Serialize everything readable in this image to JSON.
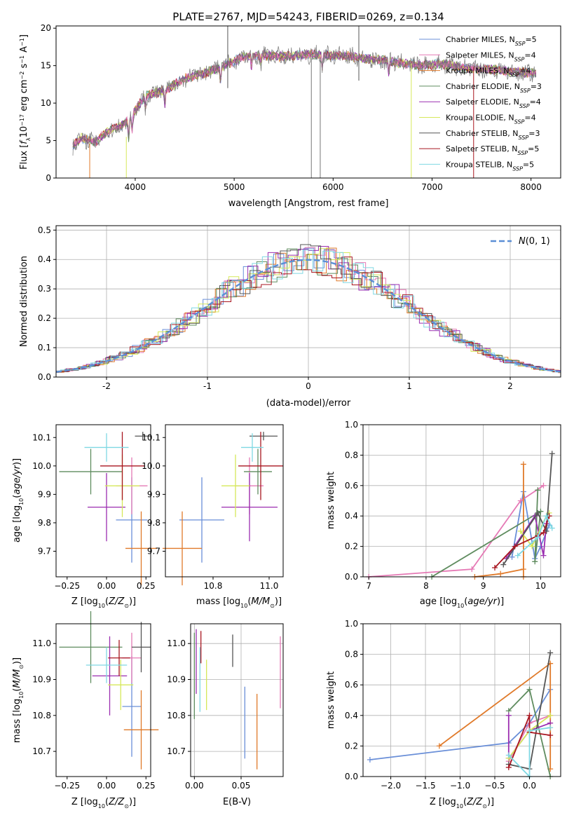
{
  "title": "PLATE=2767, MJD=54243, FIBERID=0269, z=0.134",
  "legend": [
    {
      "name": "Chabrier MILES, N_SSP=5",
      "base": "Chabrier MILES, N",
      "sub": "SSP",
      "tail": "=5",
      "color": "#6a8fd8"
    },
    {
      "name": "Salpeter MILES, N_SSP=4",
      "base": "Salpeter MILES, N",
      "sub": "SSP",
      "tail": "=4",
      "color": "#e579b5"
    },
    {
      "name": "Kroupa MILES, N_SSP=4",
      "base": "Kroupa MILES, N",
      "sub": "SSP",
      "tail": "=4",
      "color": "#e07a2a"
    },
    {
      "name": "Chabrier ELODIE, N_SSP=3",
      "base": "Chabrier ELODIE, N",
      "sub": "SSP",
      "tail": "=3",
      "color": "#5f8c5f"
    },
    {
      "name": "Salpeter ELODIE, N_SSP=4",
      "base": "Salpeter ELODIE, N",
      "sub": "SSP",
      "tail": "=4",
      "color": "#9b2eb0"
    },
    {
      "name": "Kroupa ELODIE, N_SSP=4",
      "base": "Kroupa ELODIE, N",
      "sub": "SSP",
      "tail": "=4",
      "color": "#d6e85a"
    },
    {
      "name": "Chabrier STELIB, N_SSP=3",
      "base": "Chabrier STELIB, N",
      "sub": "SSP",
      "tail": "=3",
      "color": "#555555"
    },
    {
      "name": "Salpeter STELIB, N_SSP=5",
      "base": "Salpeter STELIB, N",
      "sub": "SSP",
      "tail": "=5",
      "color": "#a81620"
    },
    {
      "name": "Kroupa STELIB, N_SSP=5",
      "base": "Kroupa STELIB, N",
      "sub": "SSP",
      "tail": "=5",
      "color": "#7fd8e3"
    }
  ],
  "chart_data": [
    {
      "id": "spectrum",
      "type": "line",
      "xlabel": "wavelength [Angstrom, rest frame]",
      "ylabel": "Flux [f_λ 10^-17 erg cm^-2 s^-1 A^-1]",
      "xlim": [
        3200,
        8300
      ],
      "ylim": [
        0,
        20.3
      ],
      "xticks": [
        4000,
        5000,
        6000,
        7000,
        8000
      ],
      "yticks": [
        0,
        5,
        10,
        15,
        20
      ],
      "grid": false,
      "legend_position": "right",
      "continuum": [
        [
          3370,
          4.3
        ],
        [
          3450,
          5.3
        ],
        [
          3600,
          4.8
        ],
        [
          3700,
          6.0
        ],
        [
          3800,
          6.7
        ],
        [
          3900,
          7.3
        ],
        [
          4000,
          9.0
        ],
        [
          4100,
          11.0
        ],
        [
          4300,
          11.7
        ],
        [
          4500,
          13.3
        ],
        [
          4700,
          14.0
        ],
        [
          4900,
          15.0
        ],
        [
          5100,
          16.2
        ],
        [
          5300,
          16.4
        ],
        [
          5500,
          16.2
        ],
        [
          5800,
          16.5
        ],
        [
          6100,
          16.3
        ],
        [
          6300,
          16.0
        ],
        [
          6500,
          15.7
        ],
        [
          6700,
          15.3
        ],
        [
          6900,
          15.0
        ],
        [
          7100,
          15.3
        ],
        [
          7300,
          14.7
        ],
        [
          7600,
          14.5
        ],
        [
          7800,
          14.2
        ],
        [
          8050,
          14.0
        ]
      ]
    },
    {
      "id": "residuals",
      "type": "histogram",
      "xlabel": "(data-model)/error",
      "ylabel": "Normed distribution",
      "xlim": [
        -2.5,
        2.5
      ],
      "ylim": [
        0,
        0.515
      ],
      "xticks": [
        -2,
        -1,
        0,
        1,
        2
      ],
      "yticks": [
        0.0,
        0.1,
        0.2,
        0.3,
        0.4,
        0.5
      ],
      "grid": true,
      "legend_position": "top-right",
      "reference_curve": {
        "name": "N(0,1)",
        "mean": 0,
        "sigma": 1,
        "color": "#5b8fd6"
      }
    },
    {
      "id": "age_vs_Z",
      "type": "errorbar",
      "xlabel": "Z [log10(Z/Z⊙)]",
      "ylabel": "age [log10(age/yr)]",
      "xlim": [
        -0.32,
        0.28
      ],
      "ylim": [
        9.61,
        10.145
      ],
      "xticks": [
        -0.25,
        0.0,
        0.25
      ],
      "xticklabels": [
        "−0.25",
        "0.00",
        "0.25"
      ],
      "yticks": [
        9.7,
        9.8,
        9.9,
        10.0,
        10.1
      ],
      "points": [
        {
          "series": 0,
          "x": 0.16,
          "xerr": 0.1,
          "y": 9.81,
          "yerr": 0.15
        },
        {
          "series": 1,
          "x": 0.16,
          "xerr": 0.1,
          "y": 9.93,
          "yerr": 0.1
        },
        {
          "series": 2,
          "x": 0.22,
          "xerr": 0.1,
          "y": 9.71,
          "yerr": 0.13
        },
        {
          "series": 3,
          "x": -0.1,
          "xerr": 0.2,
          "y": 9.98,
          "yerr": 0.08
        },
        {
          "series": 4,
          "x": 0.0,
          "xerr": 0.12,
          "y": 9.855,
          "yerr": 0.12
        },
        {
          "series": 5,
          "x": 0.1,
          "xerr": 0.11,
          "y": 9.93,
          "yerr": 0.11
        },
        {
          "series": 6,
          "x": 0.23,
          "xerr": 0.05,
          "y": 10.105,
          "yerr": 0.015
        },
        {
          "series": 7,
          "x": 0.1,
          "xerr": 0.14,
          "y": 10.0,
          "yerr": 0.12
        },
        {
          "series": 8,
          "x": 0.0,
          "xerr": 0.14,
          "y": 10.065,
          "yerr": 0.05
        }
      ]
    },
    {
      "id": "age_vs_mass",
      "type": "errorbar",
      "xlabel": "mass [log10(M/M⊙)]",
      "xlim": [
        10.63,
        11.05
      ],
      "ylim": [
        9.61,
        10.145
      ],
      "xticks": [
        10.8,
        11.0
      ],
      "xticklabels": [
        "10.8",
        "11.0"
      ],
      "yticks": [
        9.7,
        9.8,
        9.9,
        10.0,
        10.1
      ],
      "points": [
        {
          "series": 0,
          "x": 10.76,
          "xerr": 0.08,
          "y": 9.81,
          "yerr": 0.15
        },
        {
          "series": 1,
          "x": 10.93,
          "xerr": 0.05,
          "y": 9.93,
          "yerr": 0.1
        },
        {
          "series": 2,
          "x": 10.69,
          "xerr": 0.07,
          "y": 9.71,
          "yerr": 0.13
        },
        {
          "series": 3,
          "x": 10.96,
          "xerr": 0.05,
          "y": 9.98,
          "yerr": 0.08
        },
        {
          "series": 4,
          "x": 10.93,
          "xerr": 0.1,
          "y": 9.855,
          "yerr": 0.12
        },
        {
          "series": 5,
          "x": 10.88,
          "xerr": 0.05,
          "y": 9.93,
          "yerr": 0.11
        },
        {
          "series": 6,
          "x": 10.98,
          "xerr": 0.05,
          "y": 10.105,
          "yerr": 0.015
        },
        {
          "series": 7,
          "x": 10.97,
          "xerr": 0.08,
          "y": 10.0,
          "yerr": 0.12
        },
        {
          "series": 8,
          "x": 10.94,
          "xerr": 0.04,
          "y": 10.065,
          "yerr": 0.05
        }
      ]
    },
    {
      "id": "mass_weight_vs_age",
      "type": "line",
      "xlabel": "age [log10(age/yr)]",
      "ylabel": "mass weight",
      "xlim": [
        6.9,
        10.35
      ],
      "ylim": [
        0,
        1.0
      ],
      "xticks": [
        7,
        8,
        9,
        10
      ],
      "yticks": [
        0.0,
        0.2,
        0.4,
        0.6,
        0.8,
        1.0
      ],
      "grid": true,
      "series": [
        {
          "series": 0,
          "points": [
            [
              9.5,
              0.13
            ],
            [
              9.7,
              0.56
            ],
            [
              9.9,
              0.12
            ],
            [
              10.0,
              0.2
            ],
            [
              10.15,
              0.34
            ]
          ]
        },
        {
          "series": 1,
          "points": [
            [
              7.0,
              0.0
            ],
            [
              8.8,
              0.05
            ],
            [
              9.65,
              0.5
            ],
            [
              10.05,
              0.6
            ]
          ]
        },
        {
          "series": 2,
          "points": [
            [
              9.7,
              0.0
            ],
            [
              9.7,
              0.74
            ],
            [
              9.7,
              0.05
            ],
            [
              9.3,
              0.02
            ],
            [
              8.85,
              0.0
            ]
          ]
        },
        {
          "series": 3,
          "points": [
            [
              8.1,
              0.0
            ],
            [
              10.0,
              0.43
            ],
            [
              9.9,
              0.1
            ],
            [
              9.95,
              0.57
            ]
          ]
        },
        {
          "series": 4,
          "points": [
            [
              9.4,
              0.12
            ],
            [
              9.9,
              0.4
            ],
            [
              10.05,
              0.14
            ],
            [
              10.1,
              0.35
            ]
          ]
        },
        {
          "series": 5,
          "points": [
            [
              9.65,
              0.3
            ],
            [
              9.85,
              0.2
            ],
            [
              10.1,
              0.4
            ],
            [
              10.15,
              0.42
            ]
          ]
        },
        {
          "series": 6,
          "points": [
            [
              9.35,
              0.08
            ],
            [
              9.95,
              0.42
            ],
            [
              10.1,
              0.3
            ],
            [
              10.2,
              0.81
            ]
          ]
        },
        {
          "series": 7,
          "points": [
            [
              9.2,
              0.06
            ],
            [
              9.55,
              0.2
            ],
            [
              9.95,
              0.27
            ],
            [
              10.05,
              0.29
            ],
            [
              10.15,
              0.4
            ]
          ]
        },
        {
          "series": 8,
          "points": [
            [
              9.6,
              0.14
            ],
            [
              9.95,
              0.26
            ],
            [
              10.1,
              0.4
            ],
            [
              10.2,
              0.32
            ]
          ]
        }
      ]
    },
    {
      "id": "mass_vs_Z",
      "type": "errorbar",
      "xlabel": "Z [log10(Z/Z⊙)]",
      "ylabel": "mass [log10(M/M⊙)]",
      "xlim": [
        -0.32,
        0.28
      ],
      "ylim": [
        10.63,
        11.055
      ],
      "xticks": [
        -0.25,
        0.0,
        0.25
      ],
      "xticklabels": [
        "−0.25",
        "0.00",
        "0.25"
      ],
      "yticks": [
        10.7,
        10.8,
        10.9,
        11.0
      ],
      "points": [
        {
          "series": 0,
          "x": 0.16,
          "xerr": 0.06,
          "y": 10.825,
          "yerr": 0.14
        },
        {
          "series": 1,
          "x": 0.16,
          "xerr": 0.06,
          "y": 10.96,
          "yerr": 0.07
        },
        {
          "series": 2,
          "x": 0.22,
          "xerr": 0.11,
          "y": 10.76,
          "yerr": 0.11
        },
        {
          "series": 3,
          "x": -0.1,
          "xerr": 0.2,
          "y": 10.99,
          "yerr": 0.1
        },
        {
          "series": 4,
          "x": 0.02,
          "xerr": 0.11,
          "y": 10.91,
          "yerr": 0.11
        },
        {
          "series": 5,
          "x": 0.09,
          "xerr": 0.08,
          "y": 10.885,
          "yerr": 0.07
        },
        {
          "series": 6,
          "x": 0.22,
          "xerr": 0.06,
          "y": 10.99,
          "yerr": 0.07
        },
        {
          "series": 7,
          "x": 0.08,
          "xerr": 0.07,
          "y": 10.96,
          "yerr": 0.05
        },
        {
          "series": 8,
          "x": 0.0,
          "xerr": 0.13,
          "y": 10.94,
          "yerr": 0.05
        }
      ]
    },
    {
      "id": "mass_vs_EBV",
      "type": "errorbar",
      "xlabel": "E(B-V)",
      "xlim": [
        -0.004,
        0.095
      ],
      "ylim": [
        10.63,
        11.055
      ],
      "xticks": [
        0.0,
        0.05
      ],
      "xticklabels": [
        "0.00",
        "0.05"
      ],
      "yticks": [
        10.7,
        10.8,
        10.9,
        11.0
      ],
      "points": [
        {
          "series": 0,
          "x": 0.054,
          "y": 10.78,
          "yerr": 0.1
        },
        {
          "series": 1,
          "x": 0.092,
          "y": 10.92,
          "yerr": 0.1
        },
        {
          "series": 2,
          "x": 0.067,
          "y": 10.755,
          "yerr": 0.105
        },
        {
          "series": 3,
          "x": 0.0,
          "y": 10.91,
          "yerr": 0.12
        },
        {
          "series": 4,
          "x": 0.002,
          "y": 10.95,
          "yerr": 0.09
        },
        {
          "series": 5,
          "x": 0.013,
          "y": 10.885,
          "yerr": 0.07
        },
        {
          "series": 6,
          "x": 0.041,
          "y": 10.98,
          "yerr": 0.045
        },
        {
          "series": 7,
          "x": 0.007,
          "y": 10.99,
          "yerr": 0.045
        },
        {
          "series": 8,
          "x": 0.006,
          "y": 10.9,
          "yerr": 0.09
        }
      ]
    },
    {
      "id": "mass_weight_vs_Z",
      "type": "line",
      "xlabel": "Z [log10(Z/Z⊙)]",
      "ylabel": "mass weight",
      "xlim": [
        -2.4,
        0.45
      ],
      "ylim": [
        0,
        1.0
      ],
      "xticks": [
        -2.0,
        -1.5,
        -1.0,
        -0.5,
        0.0
      ],
      "xticklabels": [
        "−2.0",
        "−1.5",
        "−1.0",
        "−0.5",
        "0.0"
      ],
      "yticks": [
        0.0,
        0.2,
        0.4,
        0.6,
        0.8,
        1.0
      ],
      "grid": true,
      "series": [
        {
          "series": 0,
          "points": [
            [
              -2.3,
              0.11
            ],
            [
              -0.3,
              0.22
            ],
            [
              0.0,
              0.35
            ],
            [
              0.3,
              0.57
            ]
          ]
        },
        {
          "series": 1,
          "points": [
            [
              -0.3,
              0.1
            ],
            [
              0.0,
              0.35
            ],
            [
              0.3,
              0.4
            ]
          ]
        },
        {
          "series": 2,
          "points": [
            [
              -1.3,
              0.2
            ],
            [
              0.3,
              0.74
            ],
            [
              0.3,
              0.05
            ]
          ]
        },
        {
          "series": 3,
          "points": [
            [
              -0.3,
              0.43
            ],
            [
              0.0,
              0.57
            ],
            [
              0.3,
              0.0
            ]
          ]
        },
        {
          "series": 4,
          "points": [
            [
              -0.3,
              0.4
            ],
            [
              -0.3,
              0.12
            ],
            [
              0.0,
              0.3
            ],
            [
              0.3,
              0.35
            ]
          ]
        },
        {
          "series": 5,
          "points": [
            [
              -0.3,
              0.12
            ],
            [
              0.0,
              0.3
            ],
            [
              0.3,
              0.4
            ]
          ]
        },
        {
          "series": 6,
          "points": [
            [
              -0.3,
              0.08
            ],
            [
              0.0,
              0.05
            ],
            [
              0.3,
              0.81
            ]
          ]
        },
        {
          "series": 7,
          "points": [
            [
              -0.3,
              0.06
            ],
            [
              0.0,
              0.4
            ],
            [
              0.0,
              0.29
            ],
            [
              0.3,
              0.27
            ]
          ]
        },
        {
          "series": 8,
          "points": [
            [
              -0.3,
              0.14
            ],
            [
              0.0,
              0.0
            ],
            [
              0.0,
              0.3
            ],
            [
              0.3,
              0.32
            ]
          ]
        }
      ]
    }
  ]
}
